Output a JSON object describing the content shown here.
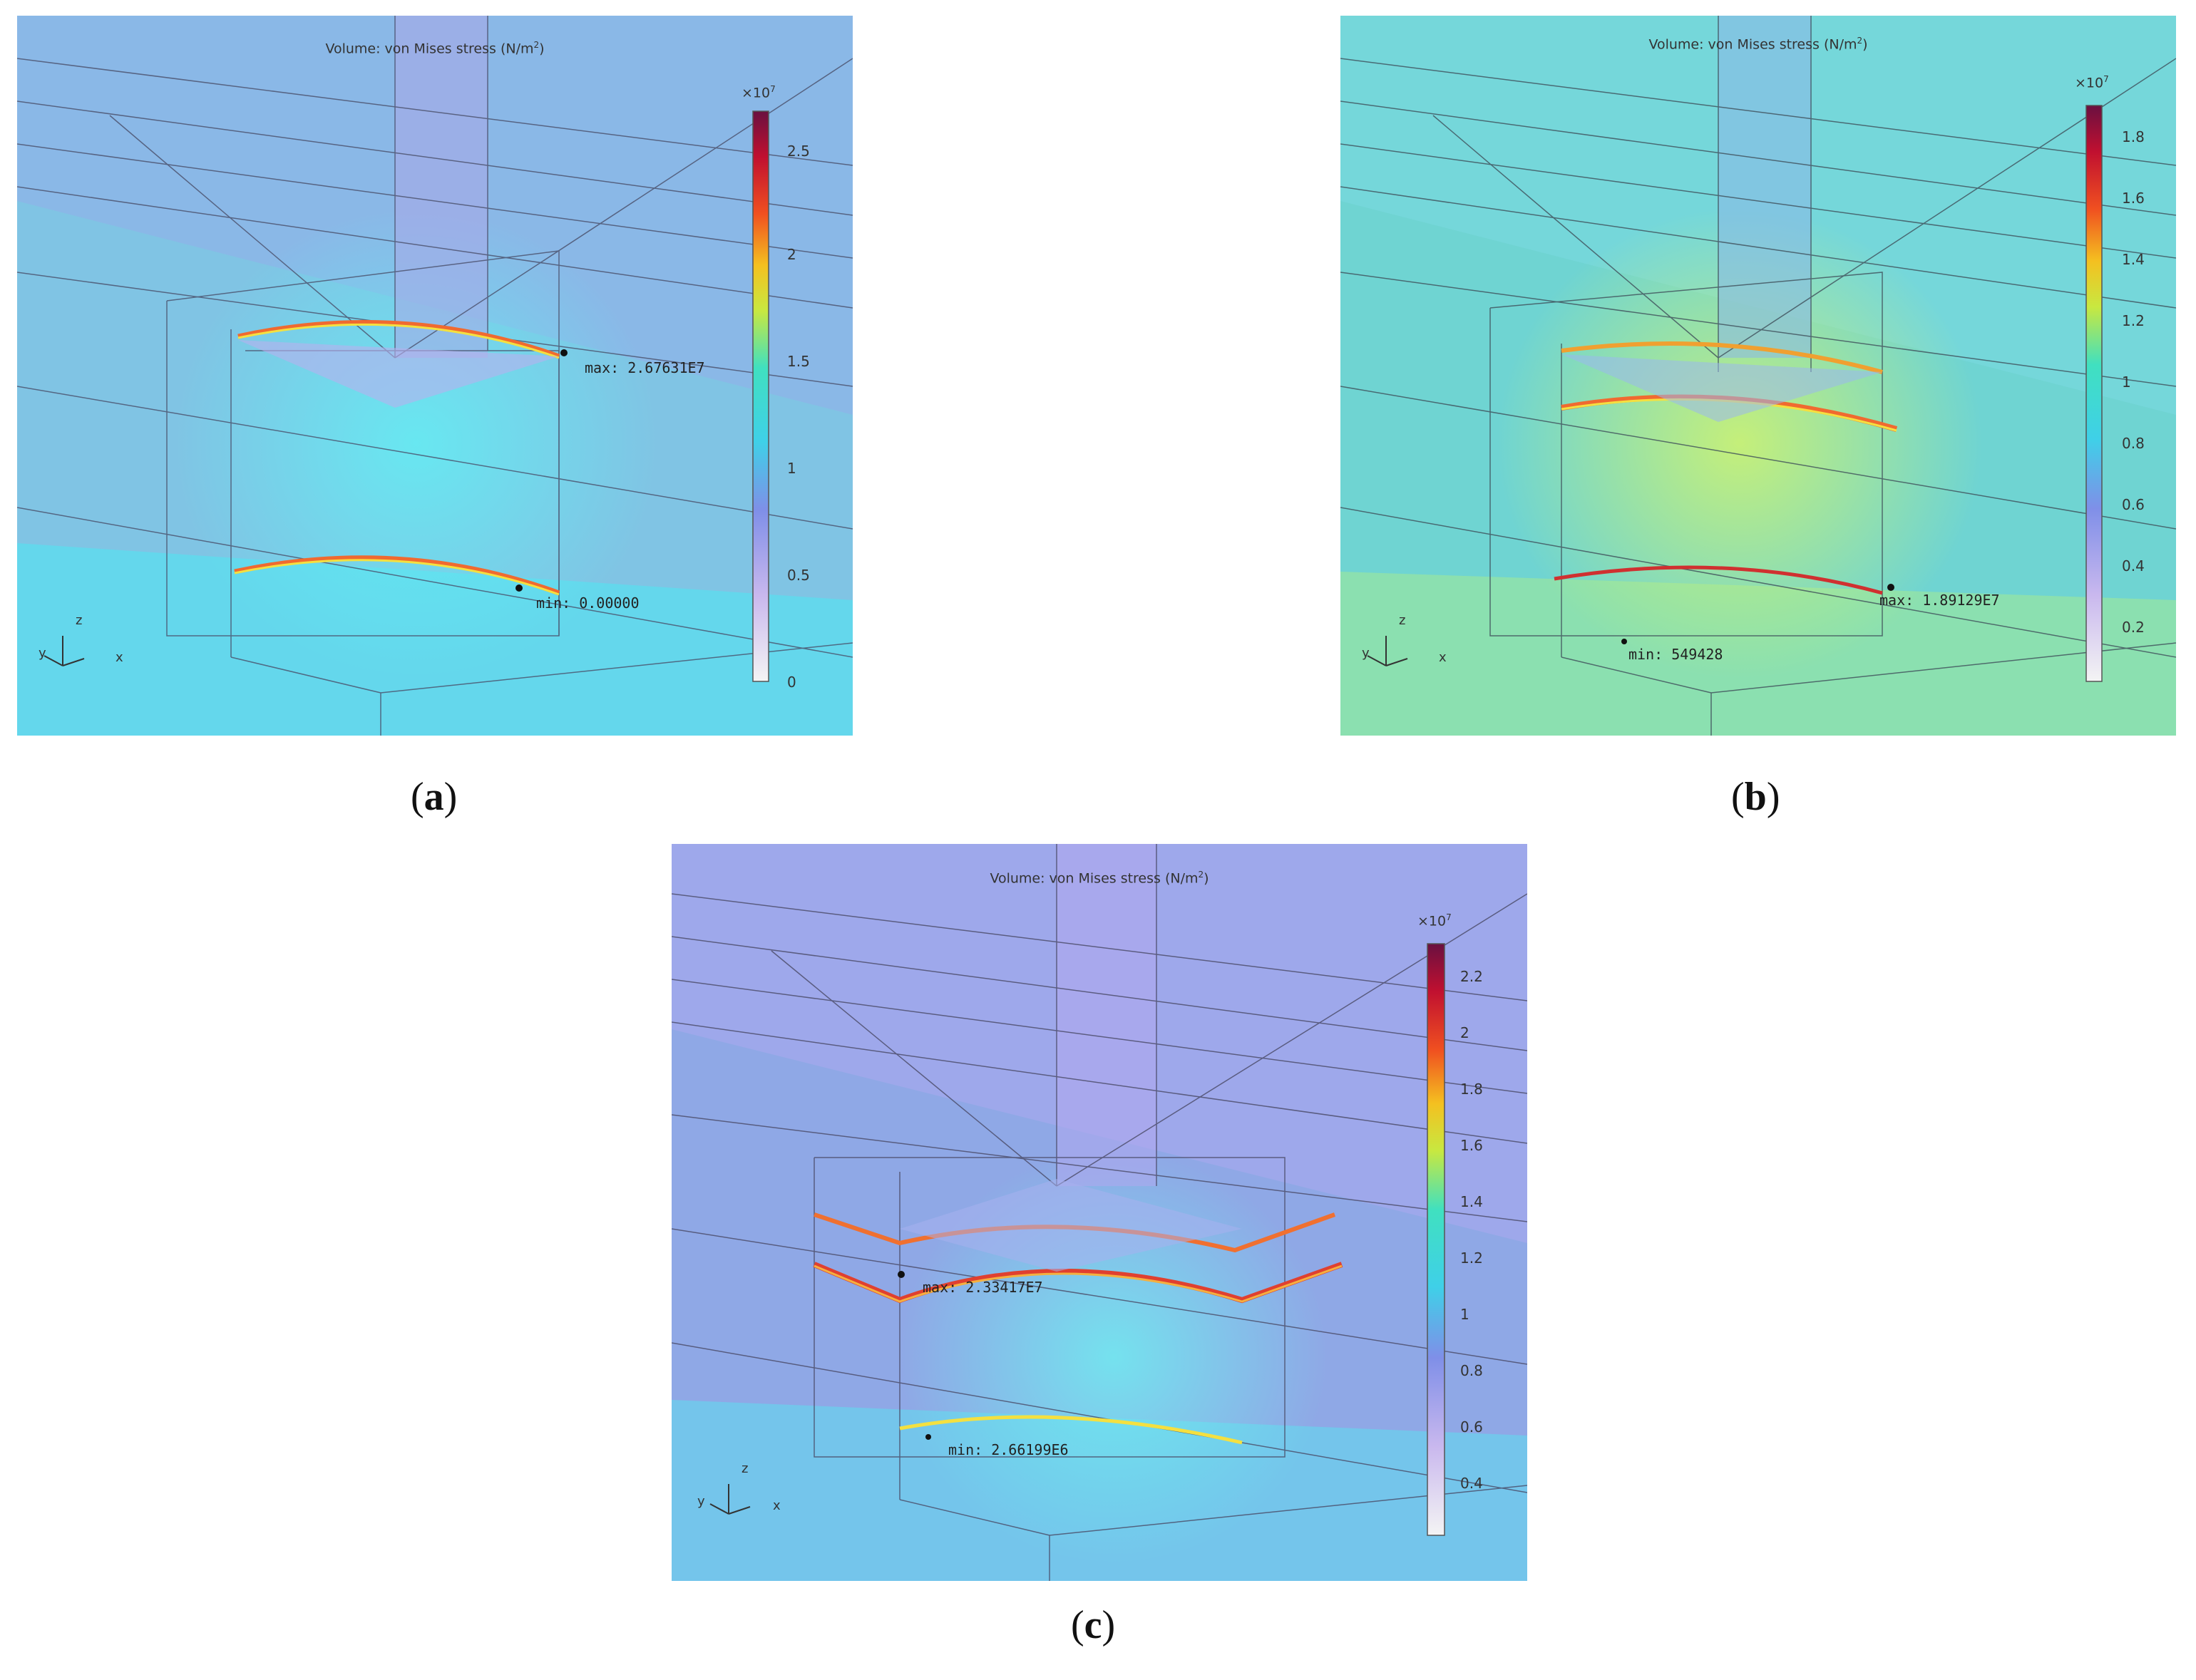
{
  "panels": [
    {
      "id": "a",
      "title": "Volume: von Mises stress (N/m",
      "title_sup": "2",
      "title_end": ")",
      "exponent_base": "×10",
      "exponent_power": "7",
      "ticks": [
        "2.5",
        "2",
        "1.5",
        "1",
        "0.5",
        "0"
      ],
      "max_label": "max: 2.67631E7",
      "min_label": "min: 0.00000",
      "axis_z": "z",
      "axis_y": "y",
      "axis_x": "x",
      "caption": "a",
      "colors": {
        "bg": "#7cc9e6",
        "core": "#5ee2ee"
      }
    },
    {
      "id": "b",
      "title": "Volume: von Mises stress (N/m",
      "title_sup": "2",
      "title_end": ")",
      "exponent_base": "×10",
      "exponent_power": "7",
      "ticks": [
        "1.8",
        "1.6",
        "1.4",
        "1.2",
        "1",
        "0.8",
        "0.6",
        "0.4",
        "0.2"
      ],
      "max_label": "max: 1.89129E7",
      "min_label": "min: 549428",
      "axis_z": "z",
      "axis_y": "y",
      "axis_x": "x",
      "caption": "b",
      "colors": {
        "bg": "#6fd4d0",
        "core": "#c9f06a"
      }
    },
    {
      "id": "c",
      "title": "Volume: von Mises stress (N/m",
      "title_sup": "2",
      "title_end": ")",
      "exponent_base": "×10",
      "exponent_power": "7",
      "ticks": [
        "2.2",
        "2",
        "1.8",
        "1.6",
        "1.4",
        "1.2",
        "1",
        "0.8",
        "0.6",
        "0.4"
      ],
      "max_label": "max: 2.33417E7",
      "min_label": "min: 2.66199E6",
      "axis_z": "z",
      "axis_y": "y",
      "axis_x": "x",
      "caption": "c",
      "colors": {
        "bg": "#8aa6e8",
        "core": "#6fe8ee"
      }
    }
  ]
}
